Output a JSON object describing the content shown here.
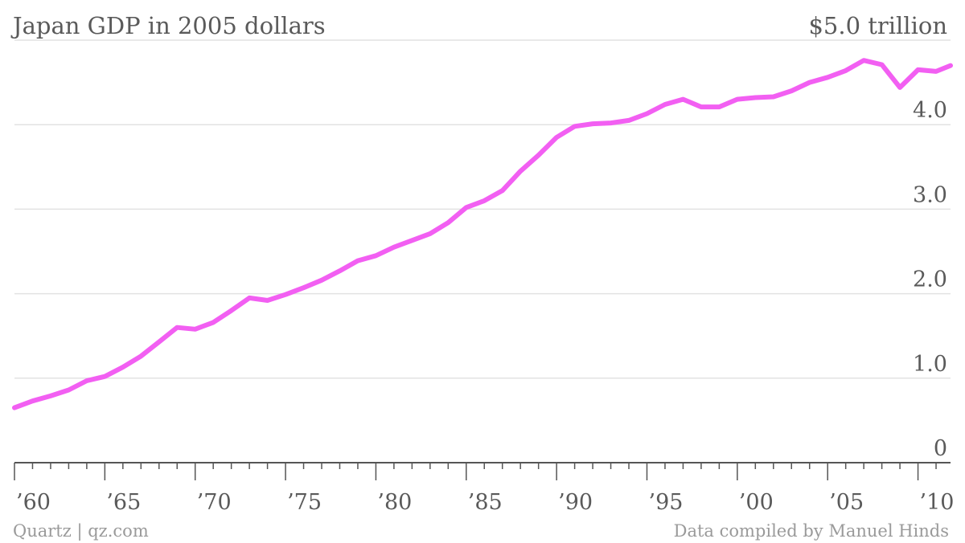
{
  "chart_data": {
    "type": "line",
    "title": "Japan GDP in 2005 dollars",
    "y_top_label": "$5.0 trillion",
    "y_ticks": [
      {
        "value": 0,
        "label": "0"
      },
      {
        "value": 1,
        "label": "1.0"
      },
      {
        "value": 2,
        "label": "2.0"
      },
      {
        "value": 3,
        "label": "3.0"
      },
      {
        "value": 4,
        "label": "4.0"
      }
    ],
    "ylim": [
      0,
      5
    ],
    "xlim": [
      1960,
      2011.8
    ],
    "x_ticks": [
      {
        "value": 1960,
        "label": "’60"
      },
      {
        "value": 1965,
        "label": "’65"
      },
      {
        "value": 1970,
        "label": "’70"
      },
      {
        "value": 1975,
        "label": "’75"
      },
      {
        "value": 1980,
        "label": "’80"
      },
      {
        "value": 1985,
        "label": "’85"
      },
      {
        "value": 1990,
        "label": "’90"
      },
      {
        "value": 1995,
        "label": "’95"
      },
      {
        "value": 2000,
        "label": "’00"
      },
      {
        "value": 2005,
        "label": "’05"
      },
      {
        "value": 2010,
        "label": "’10"
      }
    ],
    "x_minor_ticks": [
      1960,
      1961,
      1962,
      1963,
      1964,
      1965,
      1966,
      1967,
      1968,
      1969,
      1970,
      1971,
      1972,
      1973,
      1974,
      1975,
      1976,
      1977,
      1978,
      1979,
      1980,
      1981,
      1982,
      1983,
      1984,
      1985,
      1986,
      1987,
      1988,
      1989,
      1990,
      1991,
      1992,
      1993,
      1994,
      1995,
      1996,
      1997,
      1998,
      1999,
      2000,
      2001,
      2002,
      2003,
      2004,
      2005,
      2006,
      2007,
      2008,
      2009,
      2010,
      2011
    ],
    "grid": true,
    "series": [
      {
        "color": "#f25ff2",
        "x": [
          1960,
          1961,
          1962,
          1963,
          1964,
          1965,
          1966,
          1967,
          1968,
          1969,
          1970,
          1971,
          1972,
          1973,
          1974,
          1975,
          1976,
          1977,
          1978,
          1979,
          1980,
          1981,
          1982,
          1983,
          1984,
          1985,
          1986,
          1987,
          1988,
          1989,
          1990,
          1991,
          1992,
          1993,
          1994,
          1995,
          1996,
          1997,
          1998,
          1999,
          2000,
          2001,
          2002,
          2003,
          2004,
          2005,
          2006,
          2007,
          2008,
          2009,
          2010,
          2011,
          2011.8
        ],
        "values": [
          0.65,
          0.73,
          0.79,
          0.86,
          0.97,
          1.02,
          1.13,
          1.26,
          1.43,
          1.6,
          1.58,
          1.66,
          1.8,
          1.95,
          1.92,
          1.99,
          2.07,
          2.16,
          2.27,
          2.39,
          2.45,
          2.55,
          2.63,
          2.71,
          2.84,
          3.02,
          3.1,
          3.22,
          3.45,
          3.64,
          3.85,
          3.98,
          4.01,
          4.02,
          4.05,
          4.13,
          4.24,
          4.3,
          4.21,
          4.21,
          4.3,
          4.32,
          4.33,
          4.4,
          4.5,
          4.56,
          4.64,
          4.76,
          4.71,
          4.44,
          4.65,
          4.63,
          4.7
        ]
      }
    ]
  },
  "footer": {
    "source_left": "Quartz | qz.com",
    "source_right": "Data compiled by Manuel Hinds"
  }
}
